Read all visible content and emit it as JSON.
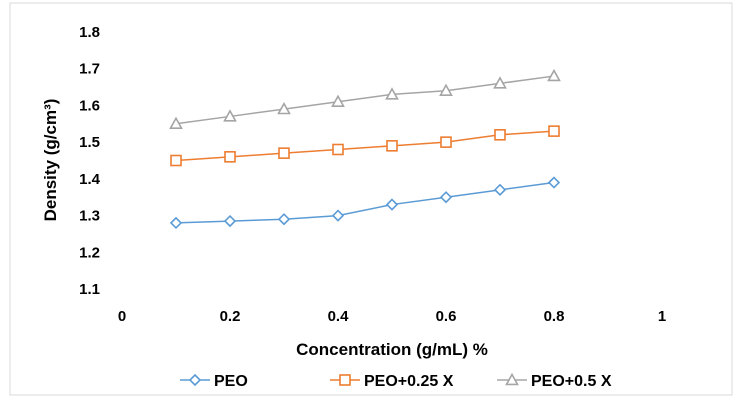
{
  "chart_data": {
    "type": "line",
    "title": "",
    "xlabel": "Concentration (g/mL) %",
    "ylabel": "Density (g/cm³)",
    "xlim": [
      0,
      1
    ],
    "ylim": [
      1.1,
      1.8
    ],
    "x_ticks": [
      "0",
      "0.2",
      "0.4",
      "0.6",
      "0.8",
      "1"
    ],
    "y_ticks": [
      "1.1",
      "1.2",
      "1.3",
      "1.4",
      "1.5",
      "1.6",
      "1.7",
      "1.8"
    ],
    "grid": false,
    "legend_position": "bottom",
    "x": [
      0.1,
      0.2,
      0.3,
      0.4,
      0.5,
      0.6,
      0.7,
      0.8
    ],
    "series": [
      {
        "name": "PEO",
        "marker": "diamond",
        "color": "#5B9BD5",
        "values": [
          1.28,
          1.285,
          1.29,
          1.3,
          1.33,
          1.35,
          1.37,
          1.39
        ]
      },
      {
        "name": "PEO+0.25 X",
        "marker": "square",
        "color": "#ED7D31",
        "values": [
          1.45,
          1.46,
          1.47,
          1.48,
          1.49,
          1.5,
          1.52,
          1.53
        ]
      },
      {
        "name": "PEO+0.5 X",
        "marker": "triangle",
        "color": "#A5A5A5",
        "values": [
          1.55,
          1.57,
          1.59,
          1.61,
          1.63,
          1.64,
          1.66,
          1.68
        ]
      }
    ]
  }
}
